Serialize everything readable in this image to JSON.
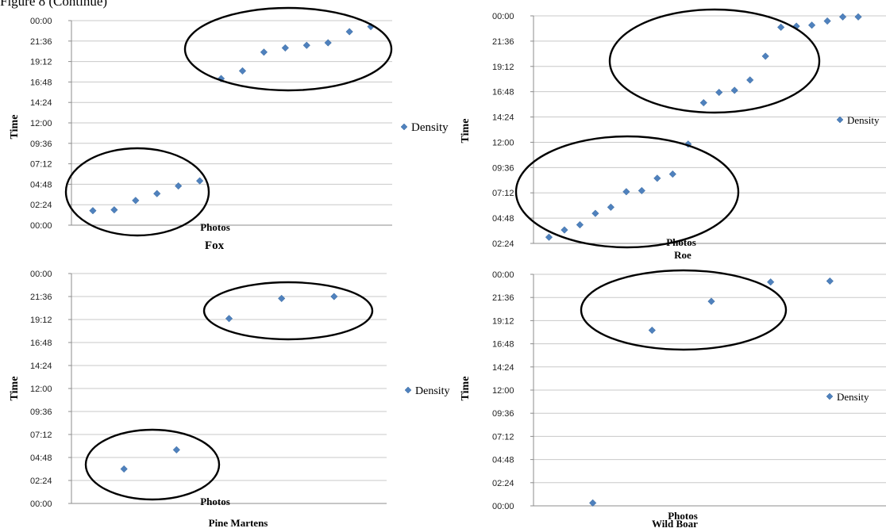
{
  "caption": "Figure 8 (Continue)",
  "chart_data": [
    {
      "type": "scatter",
      "title": "Fox",
      "xlabel": "Photos",
      "ylabel": "Time",
      "legend": [
        "Density"
      ],
      "legend_position": "right",
      "yticks": [
        "00:00",
        "02:24",
        "04:48",
        "07:12",
        "09:36",
        "12:00",
        "14:24",
        "16:48",
        "19:12",
        "21:36",
        "00:00"
      ],
      "ylim": [
        0,
        24
      ],
      "xlim": [
        0,
        15
      ],
      "grid": true,
      "series": [
        {
          "name": "Density",
          "x": [
            1,
            2,
            3,
            4,
            5,
            6,
            7,
            8,
            9,
            10,
            11,
            12,
            13,
            14
          ],
          "y": [
            1.7,
            1.8,
            2.9,
            3.7,
            4.6,
            5.2,
            17.2,
            18.1,
            20.3,
            20.8,
            21.1,
            21.4,
            22.7,
            23.3
          ]
        }
      ]
    },
    {
      "type": "scatter",
      "title": "Roe",
      "xlabel": "Photos",
      "ylabel": "Time",
      "legend": [
        "Density"
      ],
      "legend_position": "right",
      "yticks": [
        "02:24",
        "04:48",
        "07:12",
        "09:36",
        "12:00",
        "14:24",
        "16:48",
        "19:12",
        "21:36",
        "00:00"
      ],
      "ylim": [
        2,
        24
      ],
      "xlim": [
        0,
        23
      ],
      "grid": true,
      "series": [
        {
          "name": "Density",
          "x": [
            1,
            2,
            3,
            4,
            5,
            6,
            7,
            8,
            9,
            10,
            11,
            12,
            13,
            14,
            15,
            16,
            17,
            18,
            19,
            20,
            21
          ],
          "y": [
            2.6,
            3.3,
            3.8,
            4.9,
            5.5,
            7.0,
            7.1,
            8.3,
            8.7,
            11.6,
            15.6,
            16.6,
            16.8,
            17.8,
            20.1,
            22.9,
            23.0,
            23.1,
            23.5,
            23.9,
            23.9
          ]
        }
      ]
    },
    {
      "type": "scatter",
      "title": "Pine Martens",
      "xlabel": "Photos",
      "ylabel": "Time",
      "legend": [
        "Density"
      ],
      "legend_position": "right",
      "yticks": [
        "00:00",
        "02:24",
        "04:48",
        "07:12",
        "09:36",
        "12:00",
        "14:24",
        "16:48",
        "19:12",
        "21:36",
        "00:00"
      ],
      "ylim": [
        0,
        24
      ],
      "xlim": [
        0,
        6
      ],
      "grid": true,
      "series": [
        {
          "name": "Density",
          "x": [
            1,
            2,
            3,
            4,
            5
          ],
          "y": [
            3.6,
            5.6,
            19.3,
            21.4,
            21.6
          ]
        }
      ]
    },
    {
      "type": "scatter",
      "title": "Wild Boar",
      "xlabel": "Photos",
      "ylabel": "Time",
      "legend": [
        "Density"
      ],
      "legend_position": "right",
      "yticks": [
        "00:00",
        "02:24",
        "04:48",
        "07:12",
        "09:36",
        "12:00",
        "14:24",
        "16:48",
        "19:12",
        "21:36",
        "00:00"
      ],
      "ylim": [
        0,
        24
      ],
      "xlim": [
        0,
        6
      ],
      "grid": true,
      "series": [
        {
          "name": "Density",
          "x": [
            1,
            2,
            3,
            4,
            5
          ],
          "y": [
            0.3,
            18.2,
            21.2,
            23.2,
            23.3
          ]
        }
      ]
    }
  ]
}
